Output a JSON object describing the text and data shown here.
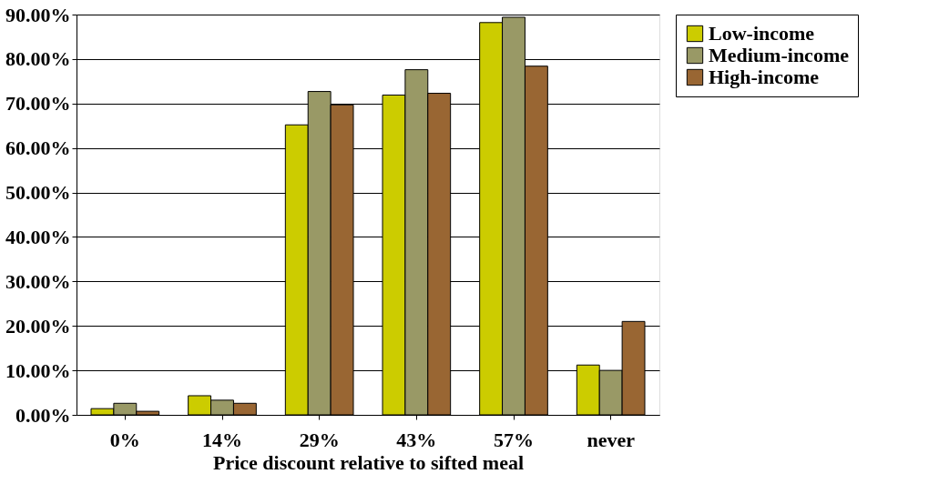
{
  "chart_data": {
    "type": "bar",
    "xlabel": "Price discount relative to sifted meal",
    "categories": [
      "0%",
      "14%",
      "29%",
      "43%",
      "57%",
      "never"
    ],
    "series": [
      {
        "name": "Low-income",
        "color": "#cccc00",
        "values": [
          1.4,
          4.3,
          65.2,
          71.9,
          88.2,
          11.2
        ]
      },
      {
        "name": "Medium-income",
        "color": "#999966",
        "values": [
          2.6,
          3.3,
          72.7,
          77.6,
          89.4,
          10.0
        ]
      },
      {
        "name": "High-income",
        "color": "#996633",
        "values": [
          0.8,
          2.6,
          69.7,
          72.3,
          78.4,
          21.0
        ]
      }
    ],
    "ylim": [
      0,
      90
    ],
    "yticks": [
      {
        "value": 0,
        "label": "0.00%"
      },
      {
        "value": 10,
        "label": "10.00%"
      },
      {
        "value": 20,
        "label": "20.00%"
      },
      {
        "value": 30,
        "label": "30.00%"
      },
      {
        "value": 40,
        "label": "40.00%"
      },
      {
        "value": 50,
        "label": "50.00%"
      },
      {
        "value": 60,
        "label": "60.00%"
      },
      {
        "value": 70,
        "label": "70.00%"
      },
      {
        "value": 80,
        "label": "80.00%"
      },
      {
        "value": 90,
        "label": "90.00%"
      }
    ],
    "grid": "y",
    "legend": "right"
  }
}
